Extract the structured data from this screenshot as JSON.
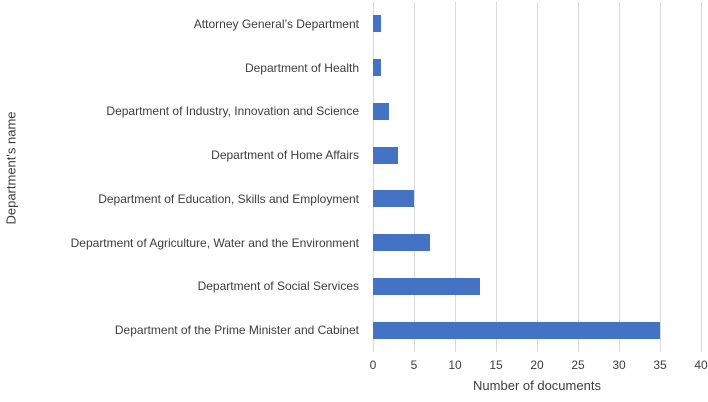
{
  "chart_data": {
    "type": "bar",
    "orientation": "horizontal",
    "title": "",
    "xlabel": "Number of documents",
    "ylabel": "Department's name",
    "categories": [
      "Attorney General’s Department",
      "Department of Health",
      "Department of Industry, Innovation and Science",
      "Department of Home Affairs",
      "Department of Education, Skills and Employment",
      "Department of Agriculture, Water and the Environment",
      "Department of Social Services",
      "Department of the Prime Minister and Cabinet"
    ],
    "values": [
      1,
      1,
      2,
      3,
      5,
      7,
      13,
      35
    ],
    "xlim": [
      0,
      40
    ],
    "xticks": [
      0,
      5,
      10,
      15,
      20,
      25,
      30,
      35,
      40
    ],
    "grid": true,
    "legend": "none",
    "bar_color": "#4472C4",
    "gridline_color": "#D9D9D9",
    "text_color": "#3d3d3d"
  }
}
